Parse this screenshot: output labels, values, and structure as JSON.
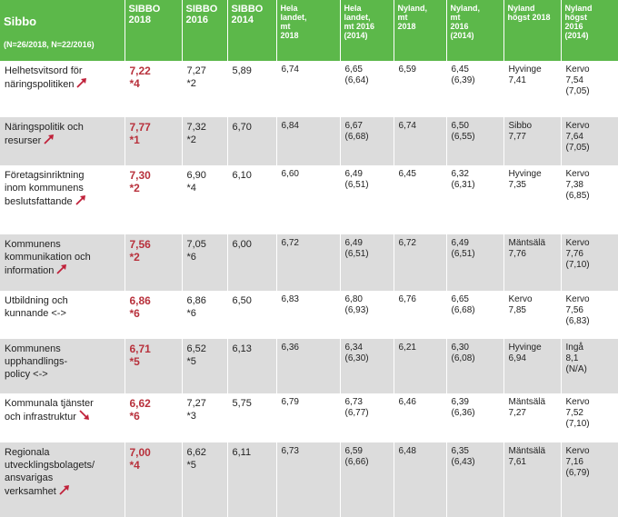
{
  "header": {
    "title": "Sibbo",
    "subtitle": "(N=26/2018, N=22/2016)",
    "cols": [
      "SIBBO\n2018",
      "SIBBO\n2016",
      "SIBBO\n2014",
      "Hela\nlandet,\nmt\n2018",
      "Hela\nlandet,\nmt 2016\n(2014)",
      "Nyland,\nmt\n2018",
      "Nyland,\nmt\n2016\n(2014)",
      "Nyland\nhögst 2018",
      "Nyland\nhögst\n2016\n(2014)"
    ]
  },
  "rows": [
    {
      "label": "Helhetsvitsord för\nnäringspolitiken",
      "trend": "up",
      "cells": [
        "7,22\n*4",
        "7,27\n*2",
        "5,89",
        "6,74",
        "6,65\n(6,64)",
        "6,59",
        "6,45\n(6,39)",
        "Hyvinge\n7,41",
        "Kervo\n7,54\n(7,05)"
      ]
    },
    {
      "label": "Näringspolitik och\nresurser",
      "trend": "up",
      "cells": [
        "7,77\n*1",
        "7,32\n*2",
        "6,70",
        "6,84",
        "6,67\n(6,68)",
        "6,74",
        "6,50\n(6,55)",
        "Sibbo\n7,77",
        "Kervo\n7,64\n(7,05)"
      ]
    },
    {
      "label": "Företagsinriktning\ninom kommunens\nbeslutsfattande",
      "trend": "up",
      "cells": [
        "7,30\n*2",
        "6,90\n*4",
        "6,10",
        "6,60",
        "6,49\n(6,51)",
        "6,45",
        "6,32\n(6,31)",
        "Hyvinge\n7,35",
        "Kervo\n7,38\n(6,85)"
      ]
    },
    {
      "label": "Kommunens\nkommunikation och\ninformation",
      "trend": "up",
      "cells": [
        "7,56\n*2",
        "7,05\n*6",
        "6,00",
        "6,72",
        "6,49\n(6,51)",
        "6,72",
        "6,49\n(6,51)",
        "Mäntsälä\n7,76",
        "Kervo\n7,76\n(7,10)"
      ]
    },
    {
      "label": "Utbildning och\nkunnande <->",
      "trend": "none",
      "cells": [
        "6,86\n*6",
        "6,86\n*6",
        "6,50",
        "6,83",
        "6,80\n(6,93)",
        "6,76",
        "6,65\n(6,68)",
        "Kervo\n7,85",
        "Kervo\n7,56\n(6,83)"
      ]
    },
    {
      "label": "Kommunens\nupphandlings-\npolicy <->",
      "trend": "none",
      "cells": [
        "6,71\n*5",
        "6,52\n*5",
        "6,13",
        "6,36",
        "6,34\n(6,30)",
        "6,21",
        "6,30\n(6,08)",
        "Hyvinge\n6,94",
        "Ingå\n8,1\n(N/A)"
      ]
    },
    {
      "label": "Kommunala tjänster\noch infrastruktur",
      "trend": "down",
      "cells": [
        "6,62\n*6",
        "7,27\n*3",
        "5,75",
        "6,79",
        "6,73\n(6,77)",
        "6,46",
        "6,39\n(6,36)",
        "Mäntsälä\n7,27",
        "Kervo\n7,52\n(7,10)"
      ]
    },
    {
      "label": "Regionala\nutvecklingsbolagets/\nansvarigas\nverksamhet",
      "trend": "up",
      "cells": [
        "7,00\n*4",
        "6,62\n*5",
        "6,11",
        "6,73",
        "6,59\n(6,66)",
        "6,48",
        "6,35\n(6,43)",
        "Mäntsälä\n7,61",
        "Kervo\n7,16\n(6,79)"
      ]
    }
  ],
  "colors": {
    "header_green": "#5cb84a",
    "sibbo_red": "#b8313c",
    "shade": "#dcdcdc",
    "arrow": "#c0213a"
  }
}
